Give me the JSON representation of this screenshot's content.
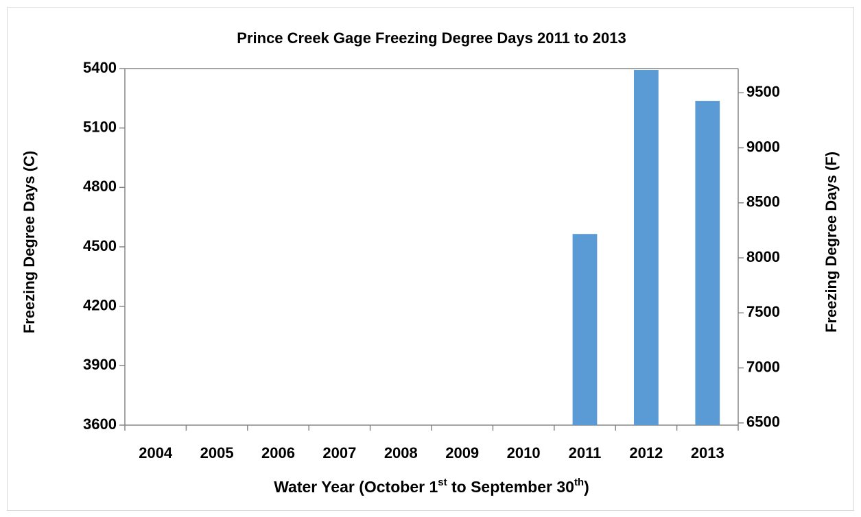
{
  "chart_data": {
    "type": "bar",
    "title": "Prince Creek Gage Freezing Degree Days 2011 to 2013",
    "x_label": [
      "Water Year (October 1",
      "st",
      " to September 30",
      "th",
      ")"
    ],
    "y_label": "Freezing Degree Days (C)",
    "y2_label": "Freezing Degree Days (F)",
    "categories": [
      "2004",
      "2005",
      "2006",
      "2007",
      "2008",
      "2009",
      "2010",
      "2011",
      "2012",
      "2013"
    ],
    "values": [
      null,
      null,
      null,
      null,
      null,
      null,
      null,
      4565,
      5393,
      5237
    ],
    "color": "#5b9bd5",
    "ylim": [
      3600,
      5400
    ],
    "yticks": [
      3600,
      3900,
      4200,
      4500,
      4800,
      5100,
      5400
    ],
    "y2lim": [
      6480,
      9720
    ],
    "y2ticks": [
      6500,
      7000,
      7500,
      8000,
      8500,
      9000,
      9500
    ],
    "grid": false
  }
}
